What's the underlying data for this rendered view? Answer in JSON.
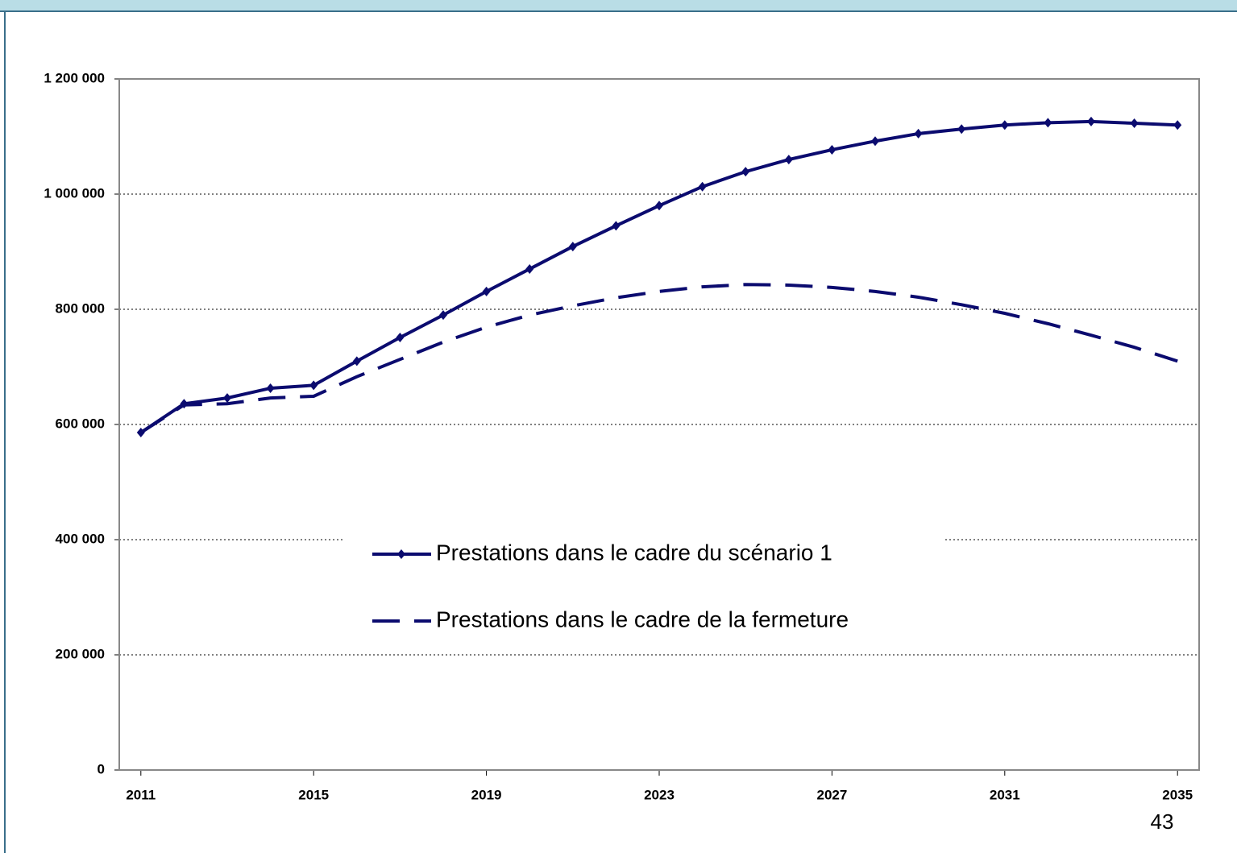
{
  "chart_data": {
    "type": "line",
    "x": [
      2011,
      2012,
      2013,
      2014,
      2015,
      2016,
      2017,
      2018,
      2019,
      2020,
      2021,
      2022,
      2023,
      2024,
      2025,
      2026,
      2027,
      2028,
      2029,
      2030,
      2031,
      2032,
      2033,
      2034,
      2035
    ],
    "series": [
      {
        "name": "Prestations dans le cadre du scénario 1",
        "color": "#0b0b6f",
        "style": "solid",
        "markers": true,
        "values": [
          586000,
          636000,
          646000,
          663000,
          668000,
          710000,
          751000,
          790000,
          831000,
          870000,
          909000,
          945000,
          980000,
          1013000,
          1039000,
          1060000,
          1077000,
          1092000,
          1105000,
          1113000,
          1120000,
          1124000,
          1126000,
          1123000,
          1120000
        ]
      },
      {
        "name": "Prestations dans le cadre de la fermeture",
        "color": "#0b0b6f",
        "style": "dashed",
        "markers": false,
        "values": [
          586000,
          634000,
          636000,
          646000,
          649000,
          683000,
          713000,
          743000,
          769000,
          790000,
          806000,
          820000,
          831000,
          839000,
          843000,
          842000,
          838000,
          831000,
          821000,
          808000,
          793000,
          775000,
          755000,
          734000,
          710000
        ]
      }
    ],
    "xlim": [
      2010.5,
      2035.5
    ],
    "xticks": [
      2011,
      2015,
      2019,
      2023,
      2027,
      2031,
      2035
    ],
    "ylim": [
      0,
      1200000
    ],
    "yticks": [
      0,
      {
        "value": 200000,
        "label": "200 000"
      },
      {
        "value": 400000,
        "label": "400 000"
      },
      {
        "value": 600000,
        "label": "600 000"
      },
      {
        "value": 800000,
        "label": "800 000"
      },
      {
        "value": 1000000,
        "label": "1 000 000"
      },
      {
        "value": 1200000,
        "label": "1 200 000"
      }
    ],
    "grid": true,
    "legend": "center"
  },
  "page_number": "43"
}
